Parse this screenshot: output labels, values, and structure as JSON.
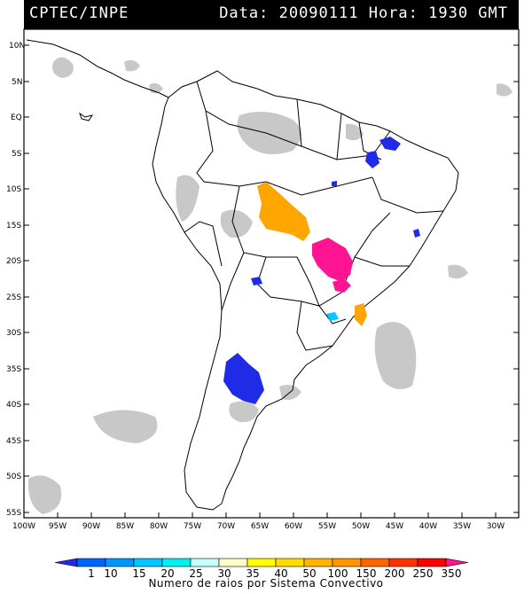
{
  "header": {
    "source": "CPTEC/INPE",
    "datetime": "Data: 20090111 Hora: 1930 GMT"
  },
  "map": {
    "lat_labels": [
      "10N",
      "5N",
      "EQ",
      "5S",
      "10S",
      "15S",
      "20S",
      "25S",
      "30S",
      "35S",
      "40S",
      "45S",
      "50S",
      "55S"
    ],
    "lon_labels": [
      "100W",
      "95W",
      "90W",
      "85W",
      "80W",
      "75W",
      "70W",
      "65W",
      "60W",
      "55W",
      "50W",
      "45W",
      "40W",
      "35W",
      "30W"
    ],
    "colors": {
      "land_outline": "#000000",
      "clouds": "#c8c8c8",
      "frame": "#000000"
    }
  },
  "colorbar": {
    "title": "Numero de raios por Sistema Convectivo",
    "ticks": [
      "1",
      "10",
      "15",
      "20",
      "25",
      "30",
      "35",
      "40",
      "50",
      "100",
      "150",
      "200",
      "250",
      "350"
    ],
    "colors": [
      "#1f2be6",
      "#0064ff",
      "#0096ff",
      "#00c8ff",
      "#00f0f0",
      "#c8ffff",
      "#ffffc8",
      "#ffff00",
      "#ffdc00",
      "#ffb400",
      "#ff9600",
      "#ff6400",
      "#ff3200",
      "#ff0000",
      "#ff1493"
    ]
  }
}
